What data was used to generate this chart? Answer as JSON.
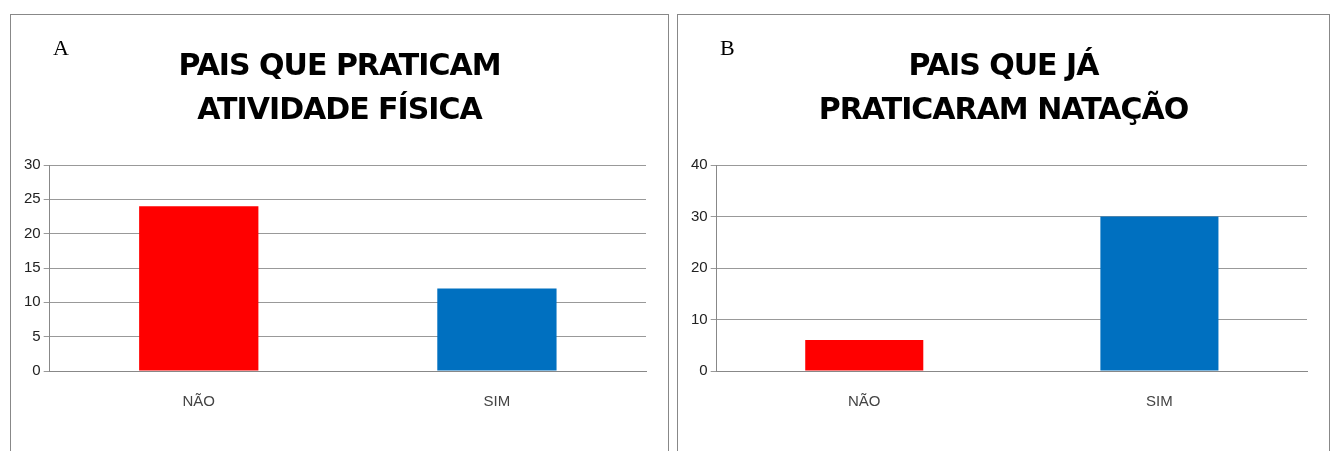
{
  "chart_data": [
    {
      "type": "bar",
      "title": "PAIS QUE PRATICAM ATIVIDADE FÍSICA",
      "annotations": [
        "A"
      ],
      "categories": [
        "NÃO",
        "SIM"
      ],
      "values": [
        24,
        12
      ],
      "colors": [
        "#ff0000",
        "#0070c0"
      ],
      "ylim": [
        0,
        30
      ],
      "yticks": [
        0,
        5,
        10,
        15,
        20,
        25,
        30
      ],
      "grid": "y",
      "legend": false
    },
    {
      "type": "bar",
      "title": "PAIS QUE JÁ PRATICARAM NATAÇÃO",
      "annotations": [
        "B"
      ],
      "categories": [
        "NÃO",
        "SIM"
      ],
      "values": [
        6,
        30
      ],
      "colors": [
        "#ff0000",
        "#0070c0"
      ],
      "ylim": [
        0,
        40
      ],
      "yticks": [
        0,
        10,
        20,
        30,
        40
      ],
      "grid": "y",
      "legend": false
    }
  ]
}
